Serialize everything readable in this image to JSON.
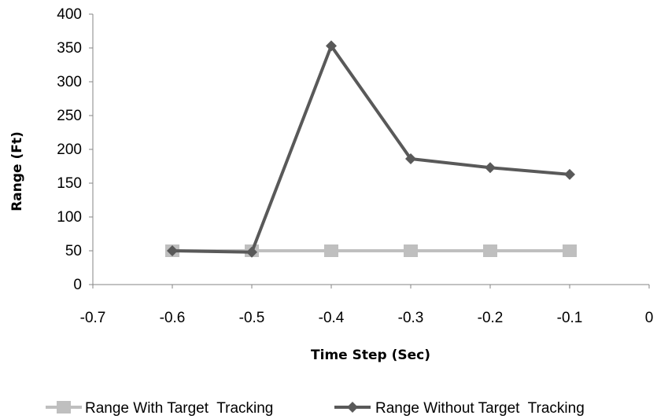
{
  "chart_data": {
    "type": "line",
    "title": "",
    "xlabel": "Time Step (Sec)",
    "ylabel": "Range (Ft)",
    "xlim": [
      -0.7,
      0
    ],
    "ylim": [
      0,
      400
    ],
    "xticks": [
      "-0.7",
      "-0.6",
      "-0.5",
      "-0.4",
      "-0.3",
      "-0.2",
      "-0.1",
      "0"
    ],
    "yticks": [
      "0",
      "50",
      "100",
      "150",
      "200",
      "250",
      "300",
      "350",
      "400"
    ],
    "grid": false,
    "legend_position": "bottom",
    "x": [
      -0.6,
      -0.5,
      -0.4,
      -0.3,
      -0.2,
      -0.1
    ],
    "series": [
      {
        "name": "Range With Target  Tracking",
        "values": [
          50,
          50,
          50,
          50,
          50,
          50
        ],
        "color": "#bfbfbf",
        "marker": "square"
      },
      {
        "name": "Range Without Target  Tracking",
        "values": [
          50,
          48,
          353,
          186,
          173,
          163
        ],
        "color": "#595959",
        "marker": "diamond"
      }
    ]
  }
}
